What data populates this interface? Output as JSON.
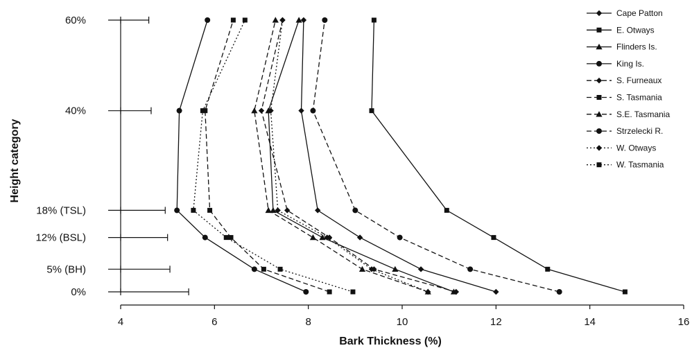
{
  "chart_data": {
    "type": "line",
    "title": "",
    "xlabel": "Bark Thickness (%)",
    "ylabel": "Height category",
    "xlim": [
      4,
      16
    ],
    "x_ticks": [
      4,
      6,
      8,
      10,
      12,
      14,
      16
    ],
    "categories": [
      "0%",
      "5% (BH)",
      "12% (BSL)",
      "18% (TSL)",
      "40%",
      "60%"
    ],
    "category_heights": [
      0,
      5,
      12,
      18,
      40,
      60
    ],
    "grid": false,
    "legend_position": "top-right",
    "colors": {
      "line": "#111111",
      "text": "#111111",
      "background": "#ffffff"
    },
    "error_bars": [
      {
        "category": "0%",
        "low": 4,
        "high": 5.45
      },
      {
        "category": "5% (BH)",
        "low": 4,
        "high": 5.05
      },
      {
        "category": "12% (BSL)",
        "low": 4,
        "high": 5.0
      },
      {
        "category": "18% (TSL)",
        "low": 4,
        "high": 4.95
      },
      {
        "category": "40%",
        "low": 4,
        "high": 4.65
      },
      {
        "category": "60%",
        "low": 4,
        "high": 4.6
      }
    ],
    "series": [
      {
        "name": "Cape Patton",
        "marker": "diamond",
        "dash": "solid",
        "values": [
          12.0,
          10.4,
          9.1,
          8.2,
          7.85,
          7.9
        ]
      },
      {
        "name": "E. Otways",
        "marker": "square",
        "dash": "solid",
        "values": [
          14.75,
          13.1,
          11.95,
          10.95,
          9.35,
          9.4
        ]
      },
      {
        "name": "Flinders Is.",
        "marker": "triangle",
        "dash": "solid",
        "values": [
          11.1,
          9.85,
          8.3,
          7.25,
          7.15,
          7.8
        ]
      },
      {
        "name": "King Is.",
        "marker": "circle",
        "dash": "solid",
        "values": [
          7.95,
          6.85,
          5.8,
          5.2,
          5.25,
          5.85
        ]
      },
      {
        "name": "S. Furneaux",
        "marker": "diamond",
        "dash": "dashed",
        "values": [
          11.15,
          9.4,
          8.45,
          7.55,
          7.0,
          7.45
        ]
      },
      {
        "name": "S. Tasmania",
        "marker": "square",
        "dash": "dashed",
        "values": [
          8.45,
          7.05,
          6.35,
          5.9,
          5.8,
          6.4
        ]
      },
      {
        "name": "S.E. Tasmania",
        "marker": "triangle",
        "dash": "dashed",
        "values": [
          10.55,
          9.15,
          8.1,
          7.15,
          6.85,
          7.3
        ]
      },
      {
        "name": "Strzelecki R.",
        "marker": "circle",
        "dash": "dashed",
        "values": [
          13.35,
          11.45,
          9.95,
          9.0,
          8.1,
          8.35
        ]
      },
      {
        "name": "W. Otways",
        "marker": "diamond",
        "dash": "dotted",
        "values": [
          10.55,
          9.35,
          8.4,
          7.35,
          7.2,
          7.45
        ]
      },
      {
        "name": "W. Tasmania",
        "marker": "square",
        "dash": "dotted",
        "values": [
          8.95,
          7.4,
          6.25,
          5.55,
          5.75,
          6.65
        ]
      }
    ]
  }
}
